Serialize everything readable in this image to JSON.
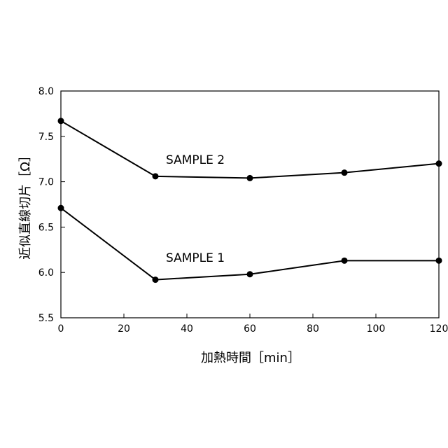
{
  "chart_data": {
    "type": "line",
    "xlabel": "加熱時間［min］",
    "ylabel": "近似直線切片［Ω］",
    "xlim": [
      0,
      120
    ],
    "ylim": [
      5.5,
      8.0
    ],
    "xticks": [
      0,
      20,
      40,
      60,
      80,
      100,
      120
    ],
    "yticks": [
      "5.5",
      "6.0",
      "6.5",
      "7.0",
      "7.5",
      "8.0"
    ],
    "grid": false,
    "series": [
      {
        "name": "SAMPLE 2",
        "x": [
          0,
          30,
          60,
          90,
          120
        ],
        "y": [
          7.67,
          7.06,
          7.04,
          7.1,
          7.2
        ]
      },
      {
        "name": "SAMPLE 1",
        "x": [
          0,
          30,
          60,
          90,
          120
        ],
        "y": [
          6.71,
          5.92,
          5.98,
          6.13,
          6.13
        ]
      }
    ]
  }
}
